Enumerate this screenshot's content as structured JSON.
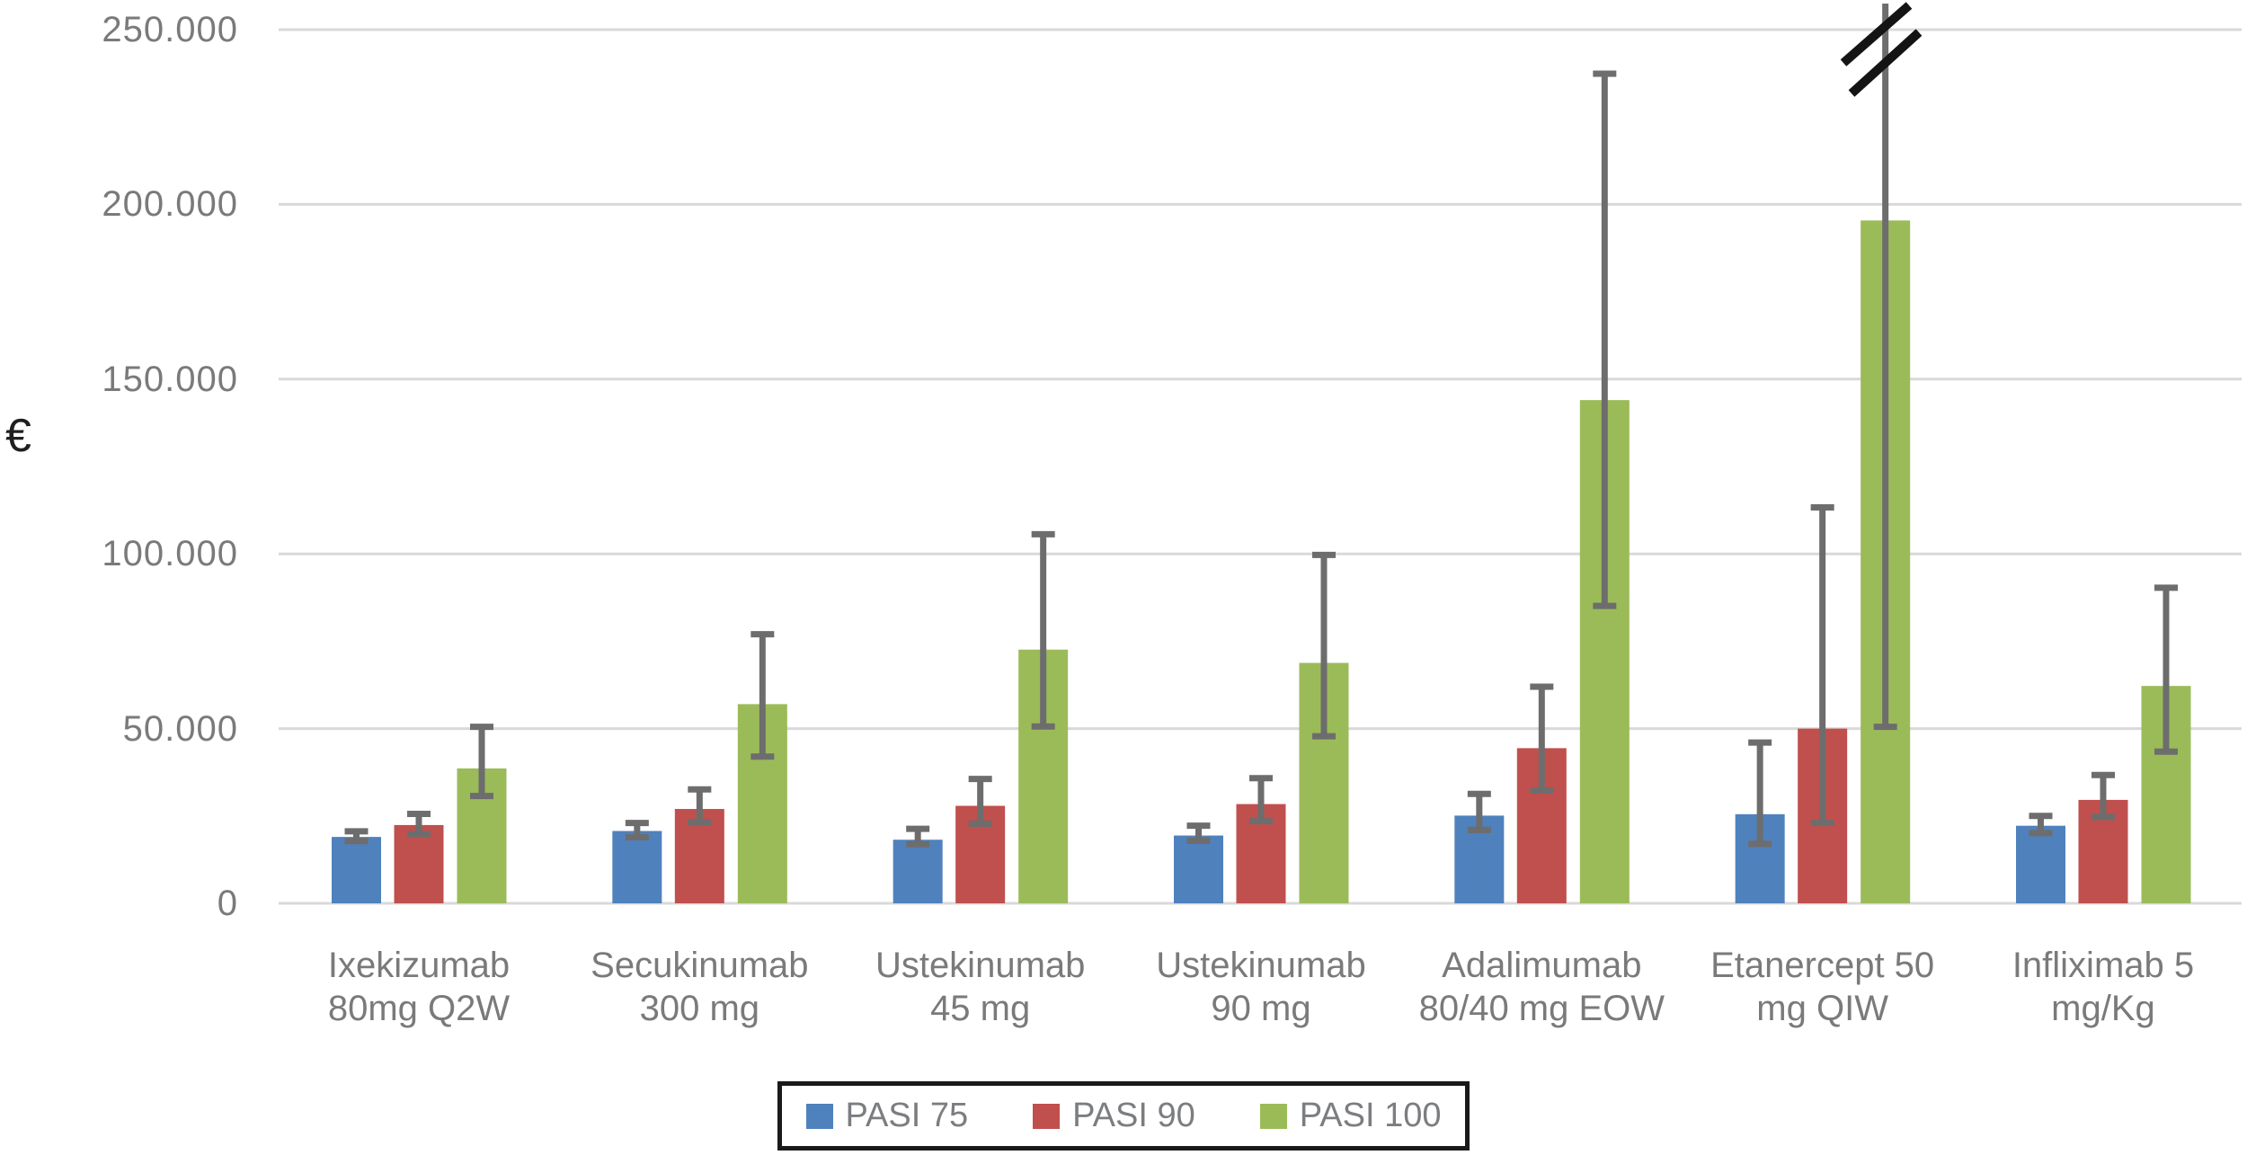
{
  "chart_data": {
    "type": "bar",
    "title": "",
    "ylabel": "€",
    "ylim": [
      0,
      250000
    ],
    "ytick_interval": 50000,
    "ytick_labels": [
      "0",
      "50.000",
      "100.000",
      "150.000",
      "200.000",
      "250.000"
    ],
    "grid": true,
    "legend_position": "bottom",
    "categories": [
      "Ixekizumab\n80mg Q2W",
      "Secukinumab\n300 mg",
      "Ustekinumab\n45 mg",
      "Ustekinumab\n90 mg",
      "Adalimumab\n80/40 mg EOW",
      "Etanercept 50\nmg QIW",
      "Infliximab 5\nmg/Kg"
    ],
    "series": [
      {
        "name": "PASI 75",
        "color": "#4F81BD",
        "values": [
          19000,
          20700,
          18200,
          19400,
          25100,
          25500,
          22200
        ],
        "error_low": [
          17800,
          18900,
          16900,
          17900,
          21000,
          17000,
          20100
        ],
        "error_high": [
          20600,
          23000,
          21300,
          22200,
          31300,
          46000,
          25000
        ]
      },
      {
        "name": "PASI 90",
        "color": "#C0504D",
        "values": [
          22400,
          27000,
          27900,
          28400,
          44400,
          50000,
          29600
        ],
        "error_low": [
          19800,
          23200,
          22800,
          23500,
          32300,
          23000,
          24700
        ],
        "error_high": [
          25600,
          32600,
          35600,
          35800,
          62000,
          113300,
          36700
        ]
      },
      {
        "name": "PASI 100",
        "color": "#9BBB59",
        "values": [
          38600,
          57000,
          72600,
          68800,
          144000,
          195400,
          62200
        ],
        "error_low": [
          30700,
          42000,
          50600,
          47800,
          85100,
          50500,
          43400
        ],
        "error_high": [
          50500,
          77000,
          105600,
          99700,
          237400,
          262000,
          90300
        ]
      }
    ],
    "axis_break": {
      "present": true,
      "series": "PASI 100",
      "category": "Etanercept 50 mg QIW",
      "category_index": 6,
      "note": "upper error whisker exceeds axis maximum; double-slash break mark drawn at top"
    }
  },
  "colors": {
    "background": "#ffffff",
    "gridline": "#d9d9d9",
    "error_bar": "#6d6d6d",
    "axis_text": "#7a7a7a",
    "unit_text": "#1f1f1f",
    "break_mark": "#141414",
    "legend_border": "#1a1a1a",
    "series_blue": "#4F81BD",
    "series_red": "#C0504D",
    "series_green": "#9BBB59"
  }
}
